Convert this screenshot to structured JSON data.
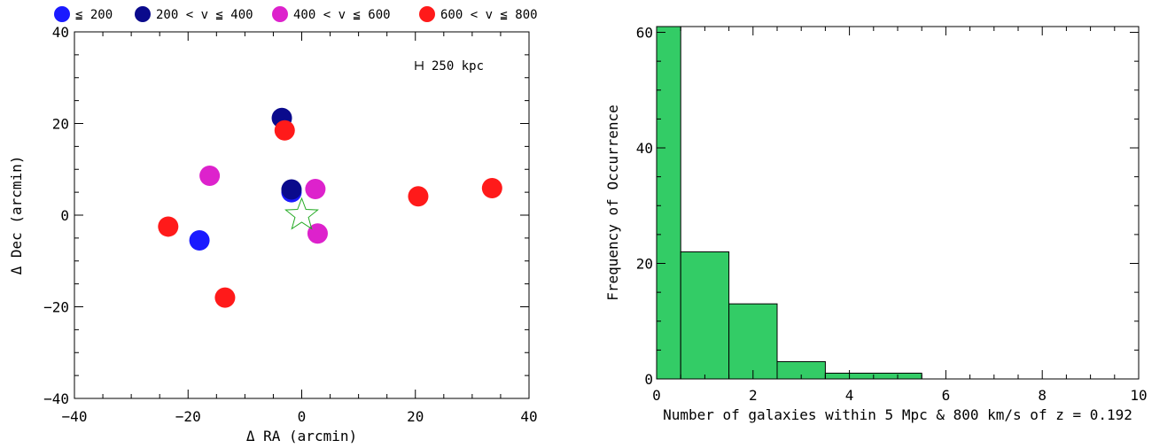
{
  "chart_data": [
    {
      "type": "scatter",
      "title": "",
      "xlabel": "Δ RA (arcmin)",
      "ylabel": "Δ Dec (arcmin)",
      "xlim": [
        -40,
        40
      ],
      "ylim": [
        -40,
        40
      ],
      "xticks": [
        -40,
        -20,
        0,
        20,
        40
      ],
      "yticks": [
        -40,
        -20,
        0,
        20,
        40
      ],
      "scale_bar_label": "250 kpc",
      "legend_position": "top",
      "series": [
        {
          "name": "≦ 200",
          "color": "#1a1aff",
          "points": [
            {
              "x": -18.0,
              "y": -5.5
            },
            {
              "x": -1.8,
              "y": 5.0
            }
          ]
        },
        {
          "name": "200 < v ≦ 400",
          "color": "#0a0a8c",
          "points": [
            {
              "x": -3.5,
              "y": 21.2
            },
            {
              "x": -1.8,
              "y": 5.6
            }
          ]
        },
        {
          "name": "400 < v ≦ 600",
          "color": "#dd22cc",
          "points": [
            {
              "x": -16.2,
              "y": 8.6
            },
            {
              "x": 2.4,
              "y": 5.7
            },
            {
              "x": 2.8,
              "y": -4.0
            }
          ]
        },
        {
          "name": "600 < v ≦ 800",
          "color": "#ff1a1a",
          "points": [
            {
              "x": -3.0,
              "y": 18.5
            },
            {
              "x": -23.5,
              "y": -2.5
            },
            {
              "x": -13.5,
              "y": -18.0
            },
            {
              "x": 20.5,
              "y": 4.1
            },
            {
              "x": 33.5,
              "y": 5.9
            }
          ]
        }
      ],
      "center_marker": {
        "shape": "star",
        "x": 0,
        "y": 0,
        "color": "#22aa22"
      }
    },
    {
      "type": "bar",
      "title": "",
      "xlabel": "Number of galaxies within 5 Mpc & 800 km/s of z = 0.192",
      "ylabel": "Frequency of Occurrence",
      "xlim": [
        0,
        10
      ],
      "ylim": [
        0,
        61
      ],
      "xticks": [
        0,
        2,
        4,
        6,
        8,
        10
      ],
      "yticks": [
        0,
        20,
        40,
        60
      ],
      "fill_color": "#33cc66",
      "bins": [
        {
          "x0": 0,
          "x1": 0.5,
          "value": 61
        },
        {
          "x0": 0.5,
          "x1": 1.5,
          "value": 22
        },
        {
          "x0": 1.5,
          "x1": 2.5,
          "value": 13
        },
        {
          "x0": 2.5,
          "x1": 3.5,
          "value": 3
        },
        {
          "x0": 3.5,
          "x1": 5.5,
          "value": 1
        },
        {
          "x0": 5.5,
          "x1": 10,
          "value": 0
        }
      ]
    }
  ]
}
